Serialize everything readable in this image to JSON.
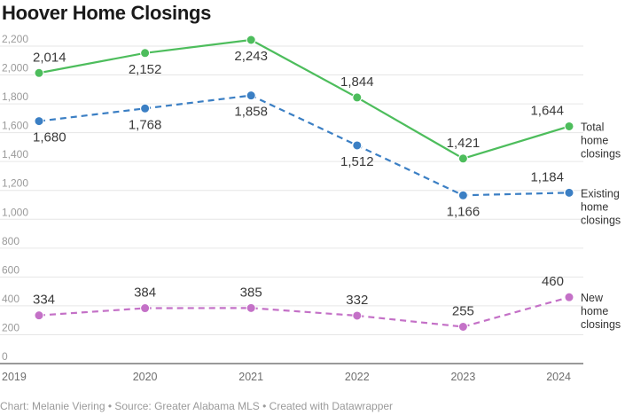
{
  "chart_data": {
    "type": "line",
    "title": "Hoover Home Closings",
    "categories": [
      "2019",
      "2020",
      "2021",
      "2022",
      "2023",
      "2024"
    ],
    "ylim": [
      0,
      2200
    ],
    "yticks": [
      0,
      200,
      400,
      600,
      800,
      1000,
      1200,
      1400,
      1600,
      1800,
      2000,
      2200
    ],
    "ytick_labels": [
      "0",
      "200",
      "400",
      "600",
      "800",
      "1,000",
      "1,200",
      "1,400",
      "1,600",
      "1,800",
      "2,000",
      "2,200"
    ],
    "grid": true,
    "series": [
      {
        "id": "total",
        "name_lines": [
          "Total",
          "home",
          "closings"
        ],
        "values": [
          2014,
          2152,
          2243,
          1844,
          1421,
          1644
        ],
        "labels": [
          "2,014",
          "2,152",
          "2,243",
          "1,844",
          "1,421",
          "1,644"
        ],
        "label_pos": [
          "above",
          "below",
          "below",
          "above",
          "above",
          "above"
        ],
        "color": "#4dbd5c",
        "dashed": false
      },
      {
        "id": "existing",
        "name_lines": [
          "Existing",
          "home",
          "closings"
        ],
        "values": [
          1680,
          1768,
          1858,
          1512,
          1166,
          1184
        ],
        "labels": [
          "1,680",
          "1,768",
          "1,858",
          "1,512",
          "1,166",
          "1,184"
        ],
        "label_pos": [
          "below",
          "below",
          "below",
          "below",
          "below",
          "above"
        ],
        "color": "#3b7fc4",
        "dashed": true
      },
      {
        "id": "new",
        "name_lines": [
          "New",
          "home",
          "closings"
        ],
        "values": [
          334,
          384,
          385,
          332,
          255,
          460
        ],
        "labels": [
          "334",
          "384",
          "385",
          "332",
          "255",
          "460"
        ],
        "label_pos": [
          "above",
          "above",
          "above",
          "above",
          "above",
          "above"
        ],
        "color": "#c471c7",
        "dashed": true
      }
    ]
  },
  "footer": "Chart: Melanie Viering • Source: Greater Alabama MLS • Created with Datawrapper"
}
